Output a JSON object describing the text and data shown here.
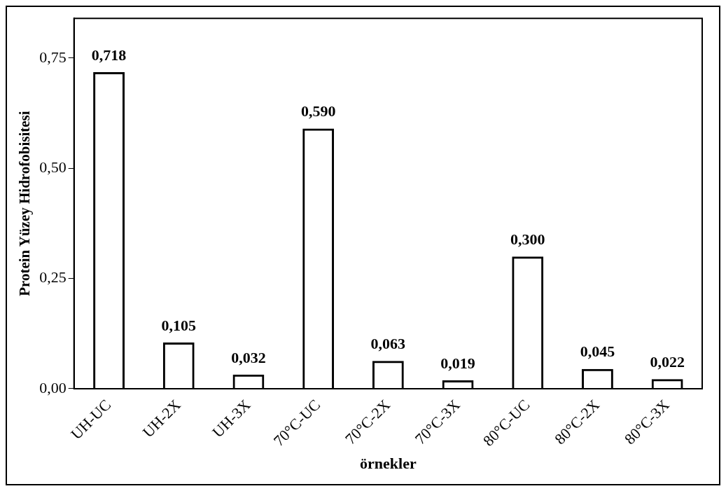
{
  "chart_data": {
    "type": "bar",
    "xlabel": "örnekler",
    "ylabel": "Protein Yüzey Hidrofobisitesi",
    "categories": [
      "UH-UC",
      "UH-2X",
      "UH-3X",
      "70°C-UC",
      "70°C-2X",
      "70°C-3X",
      "80°C-UC",
      "80°C-2X",
      "80°C-3X"
    ],
    "values": [
      0.718,
      0.105,
      0.032,
      0.59,
      0.063,
      0.019,
      0.3,
      0.045,
      0.022
    ],
    "value_labels": [
      "0,718",
      "0,105",
      "0,032",
      "0,590",
      "0,063",
      "0,019",
      "0,300",
      "0,045",
      "0,022"
    ],
    "color": "#000000",
    "ylim": [
      0,
      0.84
    ],
    "yticks": [
      {
        "value": 0,
        "label": "0,00"
      },
      {
        "value": 0.25,
        "label": "0,25"
      },
      {
        "value": 0.5,
        "label": "0,50"
      },
      {
        "value": 0.75,
        "label": "0,75"
      }
    ],
    "grid": false,
    "legend": false
  }
}
